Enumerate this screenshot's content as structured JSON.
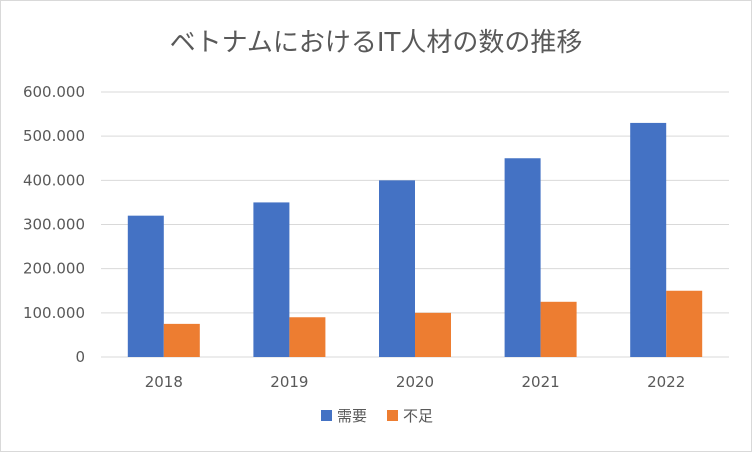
{
  "chart_data": {
    "type": "bar",
    "title": "ベトナムにおけるIT人材の数の推移",
    "xlabel": "",
    "ylabel": "",
    "categories": [
      "2018",
      "2019",
      "2020",
      "2021",
      "2022"
    ],
    "series": [
      {
        "name": "需要",
        "values": [
          320000,
          350000,
          400000,
          450000,
          530000
        ],
        "color": "#4472c4"
      },
      {
        "name": "不足",
        "values": [
          75000,
          90000,
          100000,
          125000,
          150000
        ],
        "color": "#ed7d31"
      }
    ],
    "ylim": [
      0,
      600000
    ],
    "y_ticks": [
      0,
      100000,
      200000,
      300000,
      400000,
      500000,
      600000
    ],
    "y_tick_labels": [
      "0",
      "100.000",
      "200.000",
      "300.000",
      "400.000",
      "500.000",
      "600.000"
    ],
    "grid": true,
    "legend_position": "bottom",
    "colors": {
      "axis": "#d9d9d9",
      "grid": "#d9d9d9",
      "text": "#595959"
    }
  }
}
